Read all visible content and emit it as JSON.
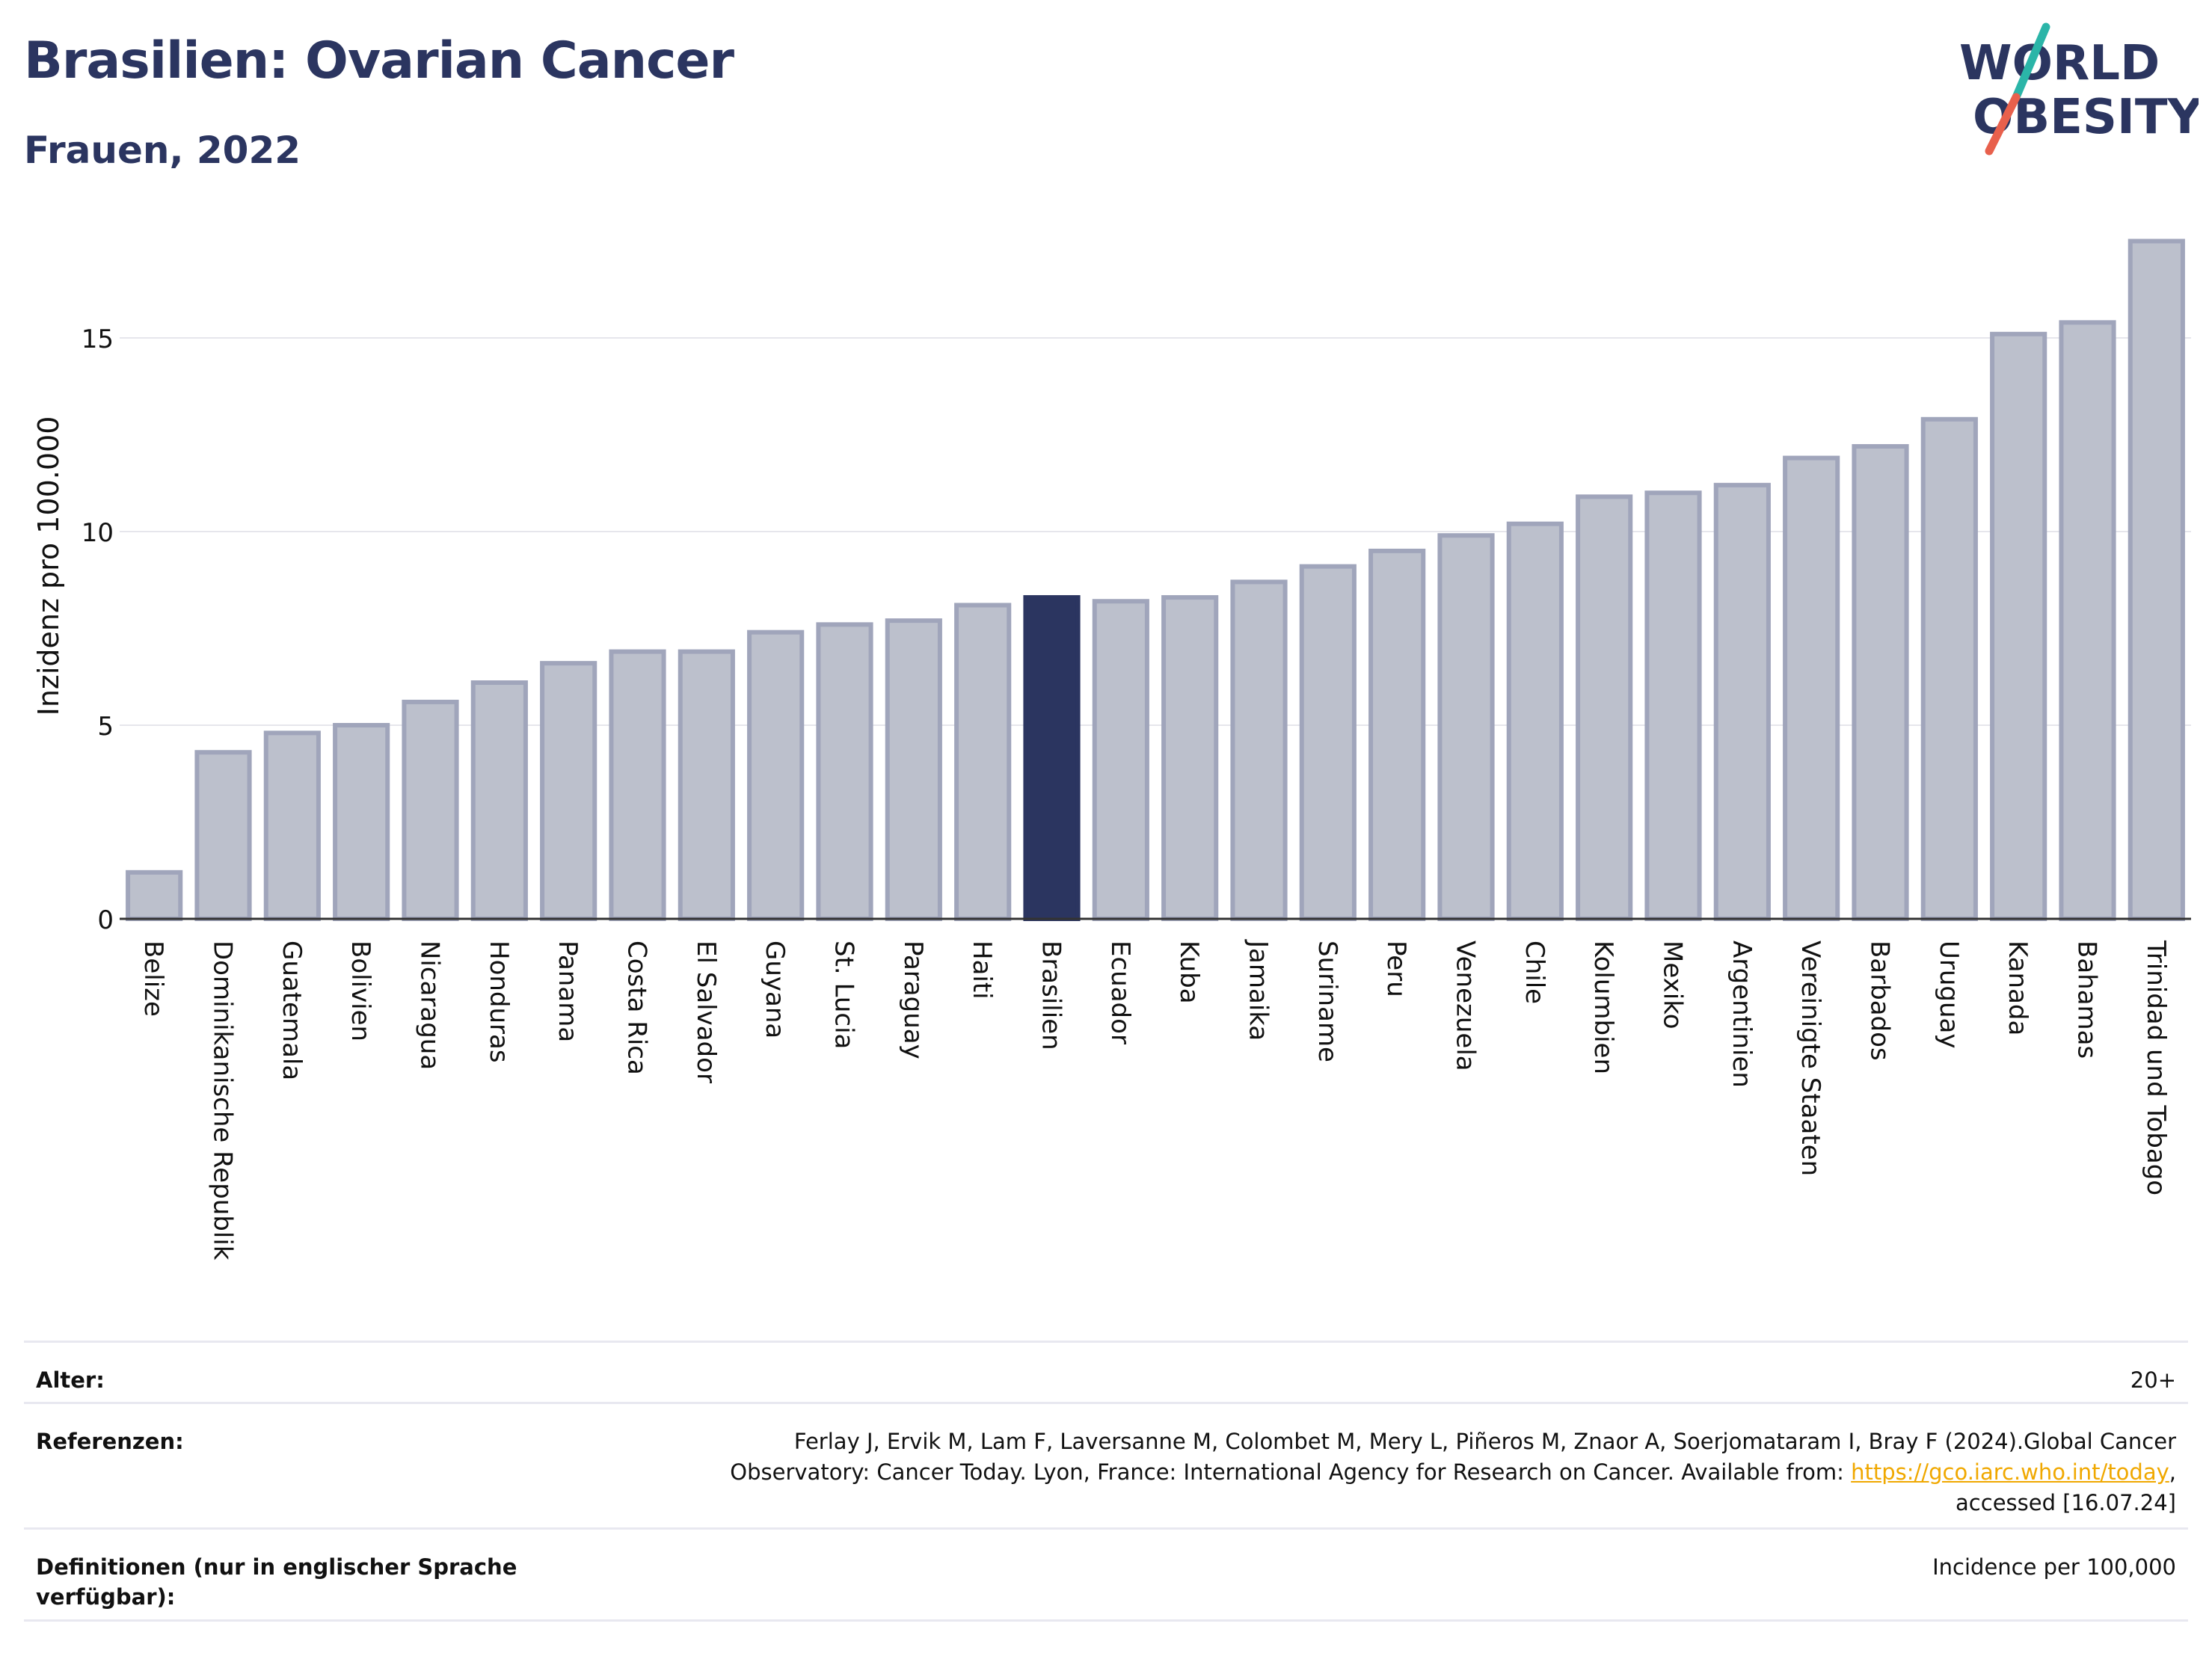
{
  "header": {
    "title": "Brasilien: Ovarian Cancer",
    "subtitle": "Frauen, 2022"
  },
  "logo": {
    "text_line1": "WORLD",
    "text_line2": "OBESITY",
    "colors": {
      "text": "#2b3560",
      "slash_top": "#2bb5a8",
      "slash_bottom": "#e8604c"
    }
  },
  "chart_data": {
    "type": "bar",
    "ylabel": "Inzidenz pro 100.000",
    "yticks": [
      0,
      5,
      10,
      15
    ],
    "ylim": [
      0,
      18
    ],
    "categories": [
      "Belize",
      "Dominikanische Republik",
      "Guatemala",
      "Bolivien",
      "Nicaragua",
      "Honduras",
      "Panama",
      "Costa Rica",
      "El Salvador",
      "Guyana",
      "St. Lucia",
      "Paraguay",
      "Haiti",
      "Brasilien",
      "Ecuador",
      "Kuba",
      "Jamaika",
      "Suriname",
      "Peru",
      "Venezuela",
      "Chile",
      "Kolumbien",
      "Mexiko",
      "Argentinien",
      "Vereinigte Staaten",
      "Barbados",
      "Uruguay",
      "Kanada",
      "Bahamas",
      "Trinidad und Tobago"
    ],
    "values": [
      1.2,
      4.3,
      4.8,
      5.0,
      5.6,
      6.1,
      6.6,
      6.9,
      6.9,
      7.4,
      7.6,
      7.7,
      8.1,
      8.3,
      8.2,
      8.3,
      8.7,
      9.1,
      9.5,
      9.9,
      10.2,
      10.9,
      11.0,
      11.2,
      11.9,
      12.2,
      12.9,
      15.1,
      15.4,
      17.5
    ],
    "highlight": "Brasilien",
    "grid": true,
    "colors": {
      "bar": "#bcc0cc",
      "bar_edge": "#a0a5bb",
      "highlight": "#2b3560",
      "grid": "#e6e6ec"
    }
  },
  "meta": {
    "age_label": "Alter:",
    "age_value": "20+",
    "ref_label": "Referenzen:",
    "ref_line1": "Ferlay J, Ervik M, Lam F, Laversanne M, Colombet M, Mery L, Piñeros M, Znaor A, Soerjomataram I, Bray F (2024).Global Cancer",
    "ref_line2_pre": "Observatory: Cancer Today. Lyon, France: International Agency for Research on Cancer. Available from: ",
    "ref_link": "https://gco.iarc.who.int/today",
    "ref_line2_post": ",",
    "ref_line3": "accessed [16.07.24]",
    "def_label": "Definitionen (nur in englischer Sprache verfügbar):",
    "def_value": "Incidence per 100,000"
  }
}
